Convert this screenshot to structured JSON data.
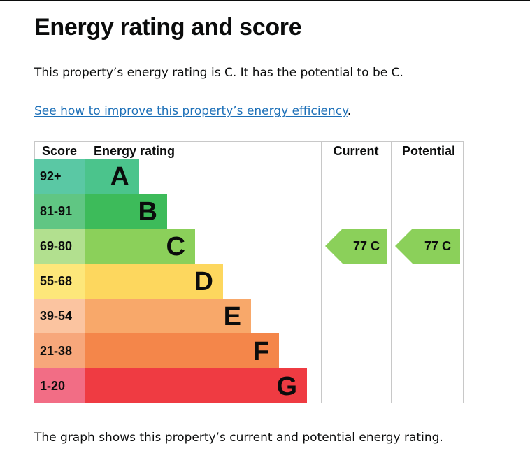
{
  "page": {
    "title": "Energy rating and score",
    "summary": "This property’s energy rating is C. It has the potential to be C.",
    "link_text": "See how to improve this property’s energy efficiency",
    "link_suffix": ".",
    "caption": "The graph shows this property’s current and potential energy rating."
  },
  "chart_data": {
    "type": "bar",
    "headers": {
      "score": "Score",
      "rating": "Energy rating",
      "current": "Current",
      "potential": "Potential"
    },
    "bands": [
      {
        "score": "92+",
        "letter": "A",
        "bar": "#4bc48c",
        "scoreBg": "#5ac8a4"
      },
      {
        "score": "81-91",
        "letter": "B",
        "bar": "#3dbb5a",
        "scoreBg": "#60c683"
      },
      {
        "score": "69-80",
        "letter": "C",
        "bar": "#8bd05a",
        "scoreBg": "#b2e08f"
      },
      {
        "score": "55-68",
        "letter": "D",
        "bar": "#fdd75e",
        "scoreBg": "#fde77a"
      },
      {
        "score": "39-54",
        "letter": "E",
        "bar": "#f8a86a",
        "scoreBg": "#fbc4a0"
      },
      {
        "score": "21-38",
        "letter": "F",
        "bar": "#f4864a",
        "scoreBg": "#f7a77b"
      },
      {
        "score": "1-20",
        "letter": "G",
        "bar": "#ef3b42",
        "scoreBg": "#f26d85"
      }
    ],
    "current": {
      "score": 77,
      "letter": "C",
      "label": "77 C",
      "color": "#8bd05a"
    },
    "potential": {
      "score": 77,
      "letter": "C",
      "label": "77 C",
      "color": "#8bd05a"
    }
  }
}
